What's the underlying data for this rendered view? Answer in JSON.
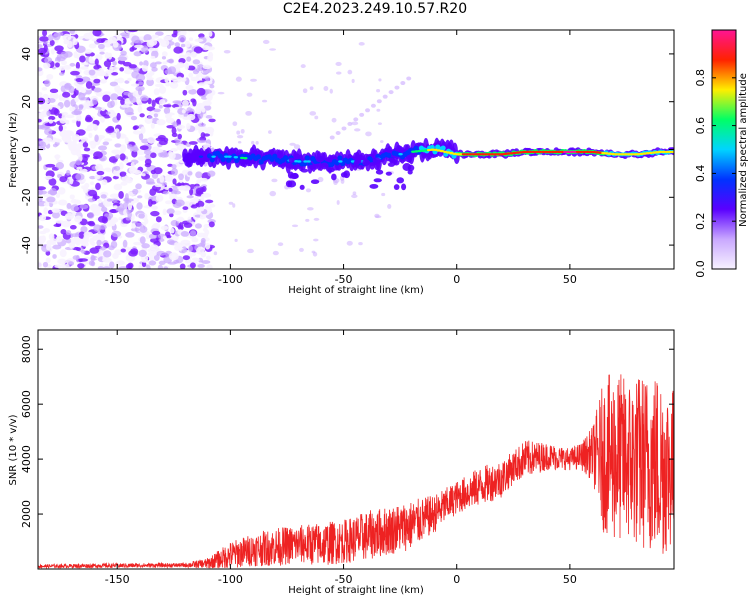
{
  "title": "C2E4.2023.249.10.57.R20",
  "colors": {
    "snr_line": "#ee2222",
    "low_density": "#7c1fff",
    "spectrum": [
      "#f7f2ff",
      "#c9a8ff",
      "#5a00ff",
      "#0033ff",
      "#00d4ff",
      "#00ff66",
      "#ffee00",
      "#ff2200",
      "#ff1493"
    ]
  },
  "chart_data": [
    {
      "type": "heatmap",
      "xlabel": "Height of straight line (km)",
      "ylabel": "Frequency (Hz)",
      "xlim": [
        -185,
        96
      ],
      "ylim": [
        -50,
        50
      ],
      "x_ticks": [
        -150,
        -100,
        -50,
        0,
        50
      ],
      "y_ticks": [
        -40,
        -20,
        0,
        20,
        40
      ],
      "colorbar": {
        "label": "Normalized spectral amplitude",
        "range": [
          0,
          1
        ],
        "ticks": [
          "0.0",
          "0.2",
          "0.4",
          "0.6",
          "0.8"
        ],
        "tick_values": [
          0,
          0.2,
          0.4,
          0.6,
          0.8
        ]
      },
      "ridge": [
        {
          "x": -120,
          "y": -3,
          "amp": 0.35
        },
        {
          "x": -100,
          "y": -3,
          "amp": 0.55
        },
        {
          "x": -90,
          "y": -4,
          "amp": 0.6
        },
        {
          "x": -80,
          "y": -4,
          "amp": 0.55
        },
        {
          "x": -70,
          "y": -5,
          "amp": 0.5
        },
        {
          "x": -60,
          "y": -5,
          "amp": 0.55
        },
        {
          "x": -50,
          "y": -5,
          "amp": 0.5
        },
        {
          "x": -40,
          "y": -5,
          "amp": 0.45
        },
        {
          "x": -30,
          "y": -3,
          "amp": 0.5
        },
        {
          "x": -20,
          "y": -1,
          "amp": 0.55
        },
        {
          "x": -10,
          "y": 0,
          "amp": 0.75
        },
        {
          "x": 0,
          "y": -2,
          "amp": 0.8
        },
        {
          "x": 10,
          "y": -2,
          "amp": 0.85
        },
        {
          "x": 20,
          "y": -2,
          "amp": 0.85
        },
        {
          "x": 30,
          "y": -1,
          "amp": 0.85
        },
        {
          "x": 40,
          "y": -1,
          "amp": 0.9
        },
        {
          "x": 50,
          "y": -1,
          "amp": 0.95
        },
        {
          "x": 60,
          "y": -1,
          "amp": 0.9
        },
        {
          "x": 70,
          "y": -2,
          "amp": 0.7
        },
        {
          "x": 80,
          "y": -2,
          "amp": 0.7
        },
        {
          "x": 90,
          "y": -1,
          "amp": 0.7
        }
      ]
    },
    {
      "type": "line",
      "xlabel": "Height of straight line (km)",
      "ylabel": "SNR (10 * v/v)",
      "xlim": [
        -185,
        96
      ],
      "ylim": [
        0,
        8700
      ],
      "x_ticks": [
        -150,
        -100,
        -50,
        0,
        50
      ],
      "y_ticks": [
        2000,
        4000,
        6000,
        8000
      ],
      "series": [
        {
          "x": [
            -185,
            -160,
            -140,
            -120,
            -110,
            -100,
            -90,
            -80,
            -70,
            -60,
            -50,
            -40,
            -30,
            -20,
            -10,
            0,
            10,
            20,
            25,
            30,
            40,
            50,
            55,
            60,
            65,
            70,
            75,
            80,
            85,
            90,
            95
          ],
          "values": [
            100,
            120,
            130,
            140,
            200,
            500,
            700,
            800,
            900,
            900,
            1000,
            1200,
            1400,
            1600,
            2000,
            2600,
            3000,
            3300,
            3700,
            4000,
            4100,
            4000,
            4100,
            4200,
            4100,
            4100,
            4000,
            3900,
            3900,
            3800,
            3700
          ],
          "spread": [
            60,
            80,
            80,
            80,
            200,
            500,
            600,
            700,
            700,
            800,
            800,
            900,
            900,
            900,
            700,
            600,
            700,
            700,
            600,
            700,
            500,
            400,
            500,
            1000,
            2800,
            3200,
            3000,
            3200,
            3300,
            3500,
            3000
          ]
        }
      ]
    }
  ]
}
